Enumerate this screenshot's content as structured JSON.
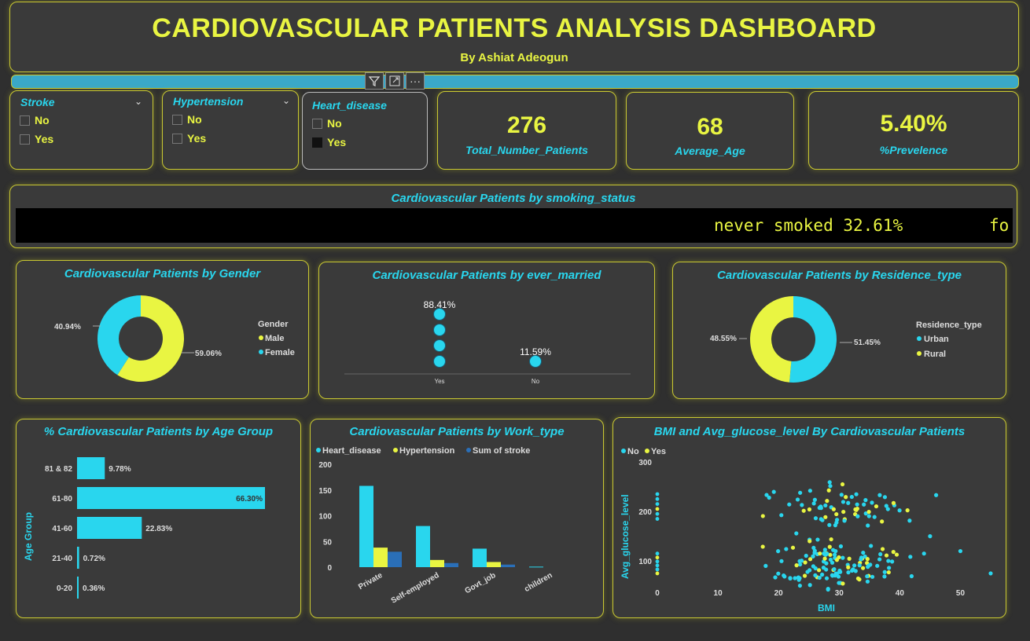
{
  "header": {
    "title": "CARDIOVASCULAR PATIENTS ANALYSIS DASHBOARD",
    "subtitle": "By Ashiat Adeogun"
  },
  "toolbar": {
    "filter_icon": "filter-icon",
    "focus_icon": "focus-mode-icon",
    "more_icon": "more-options-icon"
  },
  "slicers": [
    {
      "title": "Stroke",
      "options": [
        {
          "label": "No",
          "checked": false
        },
        {
          "label": "Yes",
          "checked": false
        }
      ]
    },
    {
      "title": "Hypertension",
      "options": [
        {
          "label": "No",
          "checked": false
        },
        {
          "label": "Yes",
          "checked": false
        }
      ]
    },
    {
      "title": "Heart_disease",
      "options": [
        {
          "label": "No",
          "checked": false
        },
        {
          "label": "Yes",
          "checked": true
        }
      ]
    }
  ],
  "kpis": [
    {
      "value": "276",
      "label": "Total_Number_Patients"
    },
    {
      "value": "68",
      "label": "Average_Age"
    },
    {
      "value": "5.40%",
      "label": "%Prevelence"
    }
  ],
  "smoking": {
    "title": "Cardiovascular Patients by smoking_status",
    "ticker_text": "never smoked 32.61%",
    "ticker_next": "fo"
  },
  "colors": {
    "cyan": "#29d6ee",
    "yellow": "#e9f542",
    "blue": "#2a6fb8"
  },
  "chart_data": [
    {
      "id": "gender",
      "type": "pie",
      "title": "Cardiovascular Patients by Gender",
      "legend_title": "Gender",
      "slices": [
        {
          "name": "Male",
          "value": 59.06,
          "label": "59.06%",
          "color": "#e9f542"
        },
        {
          "name": "Female",
          "value": 40.94,
          "label": "40.94%",
          "color": "#29d6ee"
        }
      ]
    },
    {
      "id": "married",
      "type": "scatter",
      "title": "Cardiovascular Patients by ever_married",
      "categories": [
        "Yes",
        "No"
      ],
      "values": [
        88.41,
        11.59
      ],
      "labels": [
        "88.41%",
        "11.59%"
      ]
    },
    {
      "id": "residence",
      "type": "pie",
      "title": "Cardiovascular Patients by Residence_type",
      "legend_title": "Residence_type",
      "slices": [
        {
          "name": "Urban",
          "value": 51.45,
          "label": "51.45%",
          "color": "#29d6ee"
        },
        {
          "name": "Rural",
          "value": 48.55,
          "label": "48.55%",
          "color": "#e9f542"
        }
      ]
    },
    {
      "id": "age",
      "type": "bar",
      "title": "% Cardiovascular Patients by Age Group",
      "ylabel": "Age Group",
      "categories": [
        "81 & 82",
        "61-80",
        "41-60",
        "21-40",
        "0-20"
      ],
      "values": [
        9.78,
        66.3,
        22.83,
        0.72,
        0.36
      ],
      "labels": [
        "9.78%",
        "66.30%",
        "22.83%",
        "0.72%",
        "0.36%"
      ]
    },
    {
      "id": "work",
      "type": "bar",
      "title": "Cardiovascular Patients by Work_type",
      "categories": [
        "Private",
        "Self-employed",
        "Govt_job",
        "children"
      ],
      "yticks": [
        "0",
        "50",
        "100",
        "150",
        "200"
      ],
      "ylim": [
        0,
        200
      ],
      "series": [
        {
          "name": "Heart_disease",
          "values": [
            158,
            80,
            36,
            1
          ],
          "color": "#29d6ee"
        },
        {
          "name": "Hypertension",
          "values": [
            38,
            14,
            10,
            0
          ],
          "color": "#e9f542"
        },
        {
          "name": "Sum of stroke",
          "values": [
            30,
            8,
            5,
            0
          ],
          "color": "#2a6fb8"
        }
      ]
    },
    {
      "id": "bmi",
      "type": "scatter",
      "title": "BMI and Avg_glucose_level By Cardiovascular Patients",
      "xlabel": "BMI",
      "ylabel": "Avg_glucose_level",
      "xticks": [
        "0",
        "10",
        "20",
        "30",
        "40",
        "50"
      ],
      "yticks": [
        "100",
        "200",
        "300"
      ],
      "xlim": [
        0,
        55
      ],
      "ylim": [
        40,
        300
      ],
      "legend": [
        {
          "name": "No",
          "color": "#29d6ee"
        },
        {
          "name": "Yes",
          "color": "#e9f542"
        }
      ]
    }
  ]
}
